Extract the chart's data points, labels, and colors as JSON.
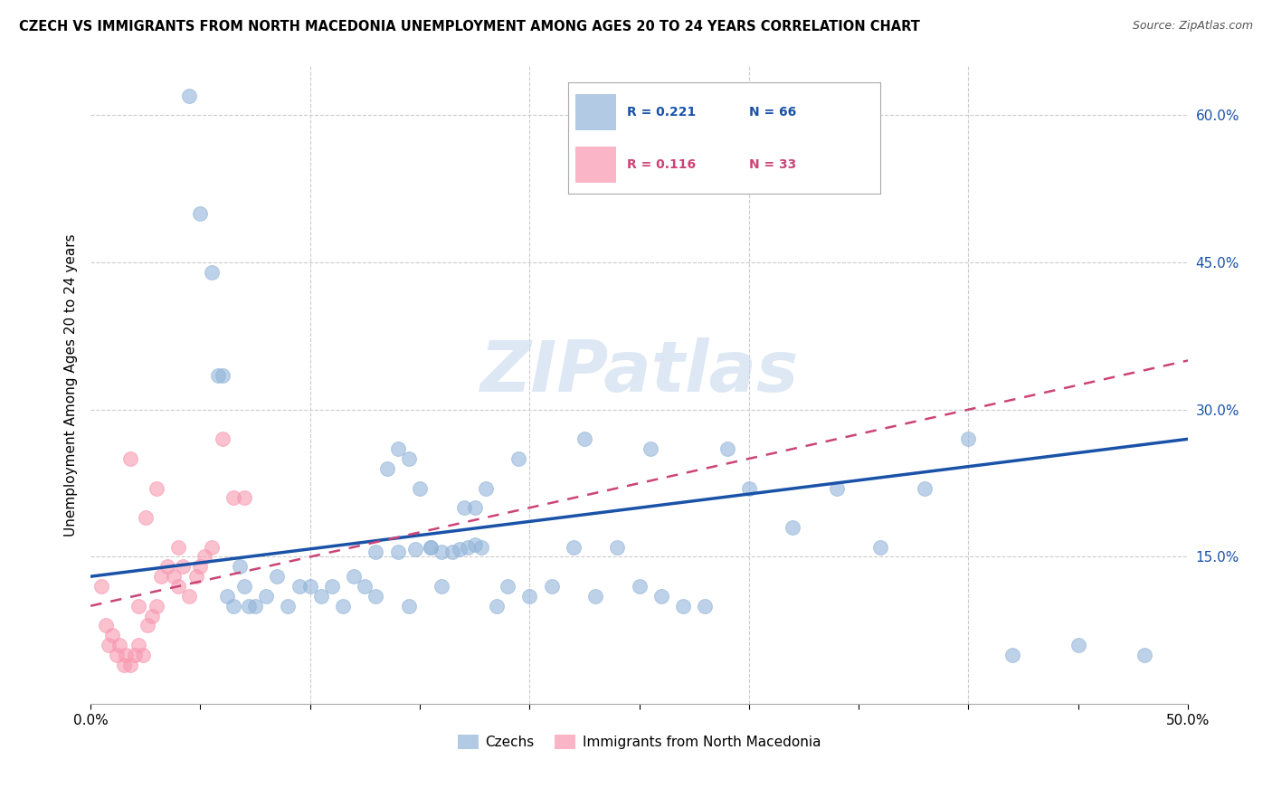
{
  "title": "CZECH VS IMMIGRANTS FROM NORTH MACEDONIA UNEMPLOYMENT AMONG AGES 20 TO 24 YEARS CORRELATION CHART",
  "source": "Source: ZipAtlas.com",
  "ylabel": "Unemployment Among Ages 20 to 24 years",
  "xlim": [
    0.0,
    0.5
  ],
  "ylim": [
    0.0,
    0.65
  ],
  "xticks": [
    0.0,
    0.05,
    0.1,
    0.15,
    0.2,
    0.25,
    0.3,
    0.35,
    0.4,
    0.45,
    0.5
  ],
  "xticklabels": [
    "0.0%",
    "",
    "",
    "",
    "",
    "",
    "",
    "",
    "",
    "",
    "50.0%"
  ],
  "ytick_positions": [
    0.15,
    0.3,
    0.45,
    0.6
  ],
  "ytick_labels": [
    "15.0%",
    "30.0%",
    "45.0%",
    "60.0%"
  ],
  "grid_color": "#cccccc",
  "background_color": "#ffffff",
  "watermark": "ZIPatlas",
  "legend_r1": "0.221",
  "legend_n1": "66",
  "legend_r2": "0.116",
  "legend_n2": "33",
  "blue_color": "#92b4d9",
  "pink_color": "#f898b0",
  "trendline_blue": "#1a52a8",
  "trendline_pink": "#cc4477",
  "czechs_x": [
    0.13,
    0.14,
    0.148,
    0.155,
    0.16,
    0.165,
    0.168,
    0.172,
    0.175,
    0.178,
    0.045,
    0.05,
    0.055,
    0.058,
    0.06,
    0.062,
    0.065,
    0.068,
    0.07,
    0.072,
    0.075,
    0.08,
    0.085,
    0.09,
    0.095,
    0.1,
    0.105,
    0.11,
    0.115,
    0.12,
    0.125,
    0.13,
    0.135,
    0.14,
    0.145,
    0.15,
    0.155,
    0.16,
    0.17,
    0.18,
    0.19,
    0.2,
    0.21,
    0.22,
    0.23,
    0.24,
    0.25,
    0.26,
    0.27,
    0.28,
    0.29,
    0.3,
    0.32,
    0.34,
    0.36,
    0.38,
    0.4,
    0.42,
    0.45,
    0.48,
    0.255,
    0.175,
    0.145,
    0.185,
    0.195,
    0.225
  ],
  "czechs_y": [
    0.155,
    0.155,
    0.158,
    0.16,
    0.155,
    0.155,
    0.158,
    0.16,
    0.162,
    0.16,
    0.62,
    0.5,
    0.44,
    0.335,
    0.335,
    0.11,
    0.1,
    0.14,
    0.12,
    0.1,
    0.1,
    0.11,
    0.13,
    0.1,
    0.12,
    0.12,
    0.11,
    0.12,
    0.1,
    0.13,
    0.12,
    0.11,
    0.24,
    0.26,
    0.25,
    0.22,
    0.16,
    0.12,
    0.2,
    0.22,
    0.12,
    0.11,
    0.12,
    0.16,
    0.11,
    0.16,
    0.12,
    0.11,
    0.1,
    0.1,
    0.26,
    0.22,
    0.18,
    0.22,
    0.16,
    0.22,
    0.27,
    0.05,
    0.06,
    0.05,
    0.26,
    0.2,
    0.1,
    0.1,
    0.25,
    0.27
  ],
  "mac_x": [
    0.005,
    0.007,
    0.008,
    0.01,
    0.012,
    0.013,
    0.015,
    0.016,
    0.018,
    0.02,
    0.022,
    0.024,
    0.026,
    0.028,
    0.03,
    0.032,
    0.035,
    0.038,
    0.04,
    0.042,
    0.045,
    0.048,
    0.05,
    0.052,
    0.055,
    0.06,
    0.065,
    0.07,
    0.03,
    0.025,
    0.018,
    0.022,
    0.04
  ],
  "mac_y": [
    0.12,
    0.08,
    0.06,
    0.07,
    0.05,
    0.06,
    0.04,
    0.05,
    0.04,
    0.05,
    0.06,
    0.05,
    0.08,
    0.09,
    0.1,
    0.13,
    0.14,
    0.13,
    0.12,
    0.14,
    0.11,
    0.13,
    0.14,
    0.15,
    0.16,
    0.27,
    0.21,
    0.21,
    0.22,
    0.19,
    0.25,
    0.1,
    0.16
  ],
  "trendline_blue_start_y": 0.13,
  "trendline_blue_end_y": 0.27,
  "trendline_pink_start_y": 0.1,
  "trendline_pink_end_y": 0.35
}
